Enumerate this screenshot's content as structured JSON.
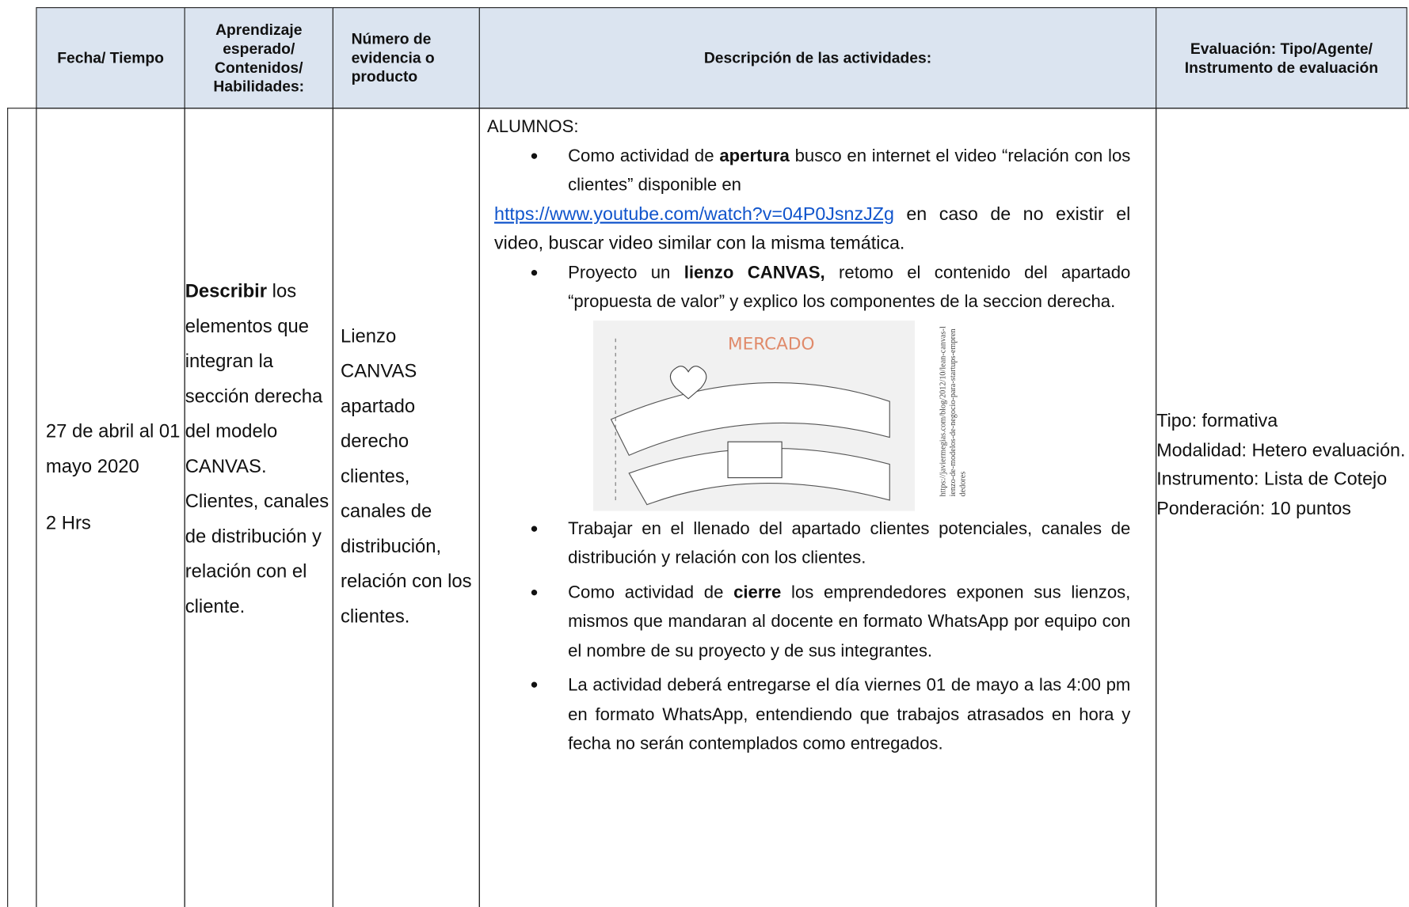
{
  "header": {
    "columns": [
      "Fecha/ Tiempo",
      "Aprendizaje esperado/ Contenidos/ Habilidades:",
      "Número de evidencia o producto",
      "Descripción de las actividades:",
      "Evaluación: Tipo/Agente/ Instrumento de evaluación"
    ]
  },
  "row": {
    "fecha": [
      "27 de abril al 01 mayo 2020",
      "2 Hrs"
    ],
    "aprendizaje": [
      "Describir",
      " los elementos que integran la sección derecha del modelo CANVAS. Clientes, canales de distribución y relación con el cliente."
    ],
    "evidencia": "Lienzo CANVAS apartado derecho clientes, canales de distribución, relación con los clientes.",
    "descripcion": {
      "heading": "ALUMNOS:",
      "items": [
        [
          "Como actividad de ",
          "apertura",
          " busco en internet el video “relación con los clientes”  disponible en"
        ],
        [
          "Proyecto un ",
          "lienzo CANVAS,",
          " retomo el contenido del apartado “propuesta de valor” y explico los componentes de la seccion derecha."
        ],
        [
          "Trabajar en el llenado del apartado clientes potenciales, canales de distribución y relación con los clientes."
        ],
        [
          "Como actividad de ",
          "cierre",
          " los emprendedores exponen sus lienzos, mismos que mandaran al docente en formato WhatsApp por equipo con el nombre de su proyecto y de sus integrantes."
        ],
        [
          "La actividad deberá entregarse el día viernes 01 de mayo a las 4:00 pm en formato WhatsApp, entendiendo que trabajos atrasados en hora y fecha no serán contemplados como entregados."
        ]
      ],
      "paragraph": {
        "link": "https://www.youtube.com/watch?v=04P0JsnzJZg",
        "text": "  en caso de no existir el video, buscar video similar con la misma temática."
      },
      "image": {
        "label": "MERCADO",
        "source": "https://javiermegias.com/blog/2012/10/lean-canvas-lienzo-de-modelos-de-negocio-para-startups-emprendedores"
      }
    },
    "evaluacion": [
      "Tipo: formativa",
      "Modalidad: Hetero evaluación.",
      "Instrumento: Lista de Cotejo",
      "Ponderación: 10 puntos"
    ]
  }
}
